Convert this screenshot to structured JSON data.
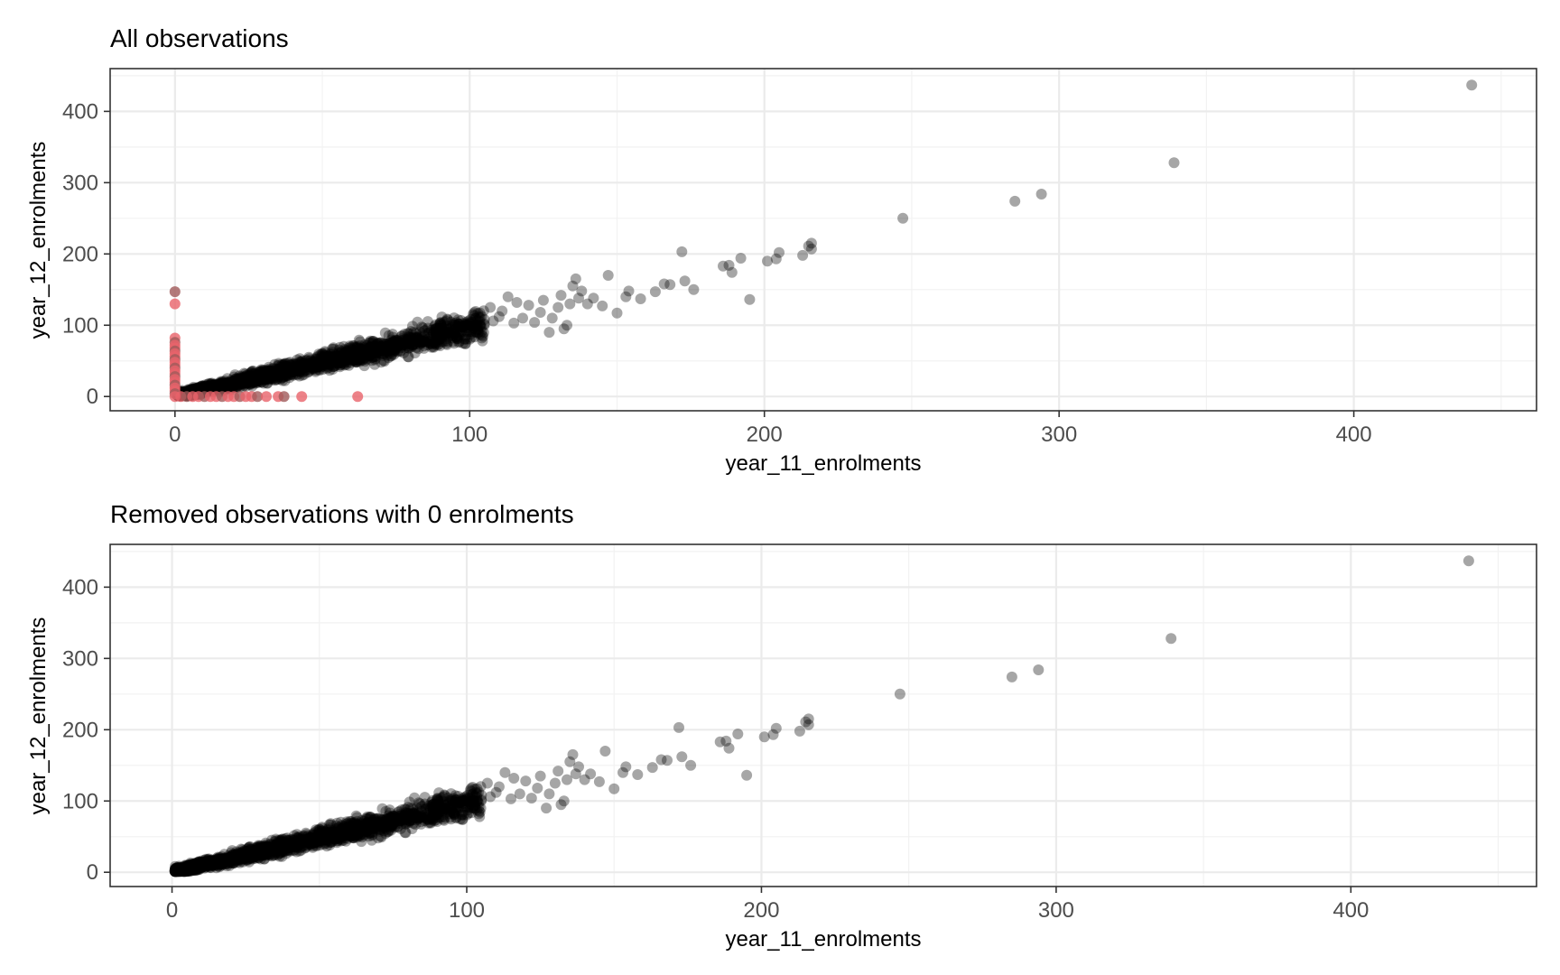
{
  "chart_data": [
    {
      "type": "scatter",
      "title": "All observations",
      "xlabel": "year_11_enrolments",
      "ylabel": "year_12_enrolments",
      "xlim": [
        -22,
        462
      ],
      "ylim": [
        -20,
        460
      ],
      "x_ticks": [
        0,
        100,
        200,
        300,
        400
      ],
      "y_ticks": [
        0,
        100,
        200,
        300,
        400
      ],
      "x_tick_labels": [
        "0",
        "100",
        "200",
        "300",
        "400"
      ],
      "y_tick_labels": [
        "0",
        "100",
        "200",
        "300",
        "400"
      ],
      "grid": true,
      "legend": "none",
      "colors": {
        "main": "#000000",
        "zero": "#e8636a",
        "zero_alt": "#a05a5a"
      },
      "series": [
        {
          "color": "#000000",
          "opacity": 0.35,
          "trend": {
            "slope": 0.97,
            "intercept": 0,
            "x_range": [
              1,
              105
            ],
            "noise": 8,
            "count": 1800
          },
          "points": [
            [
              440,
              437
            ],
            [
              339,
              328
            ],
            [
              294,
              284
            ],
            [
              285,
              274
            ],
            [
              247,
              250
            ],
            [
              216,
              215
            ],
            [
              216,
              207
            ],
            [
              215,
              211
            ],
            [
              213,
              198
            ],
            [
              205,
              202
            ],
            [
              204,
              193
            ],
            [
              201,
              190
            ],
            [
              195,
              136
            ],
            [
              192,
              194
            ],
            [
              189,
              174
            ],
            [
              188,
              184
            ],
            [
              186,
              183
            ],
            [
              176,
              150
            ],
            [
              173,
              162
            ],
            [
              172,
              203
            ],
            [
              168,
              157
            ],
            [
              166,
              158
            ],
            [
              163,
              147
            ],
            [
              158,
              137
            ],
            [
              154,
              148
            ],
            [
              153,
              140
            ],
            [
              150,
              117
            ],
            [
              147,
              170
            ],
            [
              145,
              127
            ],
            [
              142,
              138
            ],
            [
              140,
              130
            ],
            [
              138,
              148
            ],
            [
              137,
              138
            ],
            [
              136,
              165
            ],
            [
              135,
              155
            ],
            [
              134,
              130
            ],
            [
              133,
              100
            ],
            [
              132,
              95
            ],
            [
              131,
              142
            ],
            [
              130,
              125
            ],
            [
              128,
              110
            ],
            [
              127,
              90
            ],
            [
              125,
              135
            ],
            [
              124,
              118
            ],
            [
              122,
              104
            ],
            [
              120,
              128
            ],
            [
              118,
              110
            ],
            [
              116,
              132
            ],
            [
              115,
              103
            ],
            [
              113,
              140
            ],
            [
              111,
              120
            ],
            [
              110,
              112
            ],
            [
              108,
              106
            ],
            [
              107,
              125
            ],
            [
              105,
              108
            ]
          ]
        },
        {
          "color": "#e8636a",
          "opacity": 0.8,
          "points": [
            [
              0,
              147
            ],
            [
              0,
              130
            ],
            [
              0,
              82
            ],
            [
              0,
              76
            ],
            [
              0,
              72
            ],
            [
              0,
              68
            ],
            [
              0,
              64
            ],
            [
              0,
              60
            ],
            [
              0,
              56
            ],
            [
              0,
              52
            ],
            [
              0,
              48
            ],
            [
              0,
              44
            ],
            [
              0,
              40
            ],
            [
              0,
              36
            ],
            [
              0,
              32
            ],
            [
              0,
              28
            ],
            [
              0,
              24
            ],
            [
              0,
              20
            ],
            [
              0,
              16
            ],
            [
              0,
              12
            ],
            [
              0,
              8
            ],
            [
              0,
              4
            ],
            [
              0,
              0
            ],
            [
              2,
              0
            ],
            [
              4,
              0
            ],
            [
              6,
              0
            ],
            [
              8,
              0
            ],
            [
              10,
              0
            ],
            [
              12,
              0
            ],
            [
              14,
              0
            ],
            [
              16,
              0
            ],
            [
              18,
              0
            ],
            [
              20,
              0
            ],
            [
              22,
              0
            ],
            [
              24,
              0
            ],
            [
              26,
              0
            ],
            [
              28,
              0
            ],
            [
              31,
              0
            ],
            [
              35,
              0
            ],
            [
              37,
              0
            ],
            [
              43,
              0
            ],
            [
              62,
              0
            ]
          ]
        }
      ]
    },
    {
      "type": "scatter",
      "title": "Removed observations with 0 enrolments",
      "xlabel": "year_11_enrolments",
      "ylabel": "year_12_enrolments",
      "xlim": [
        -21,
        463
      ],
      "ylim": [
        -20,
        460
      ],
      "x_ticks": [
        0,
        100,
        200,
        300,
        400
      ],
      "y_ticks": [
        0,
        100,
        200,
        300,
        400
      ],
      "x_tick_labels": [
        "0",
        "100",
        "200",
        "300",
        "400"
      ],
      "y_tick_labels": [
        "0",
        "100",
        "200",
        "300",
        "400"
      ],
      "grid": true,
      "legend": "none",
      "series": [
        {
          "color": "#000000",
          "opacity": 0.35,
          "trend": {
            "slope": 0.97,
            "intercept": 0,
            "x_range": [
              1,
              105
            ],
            "noise": 8,
            "count": 1800
          },
          "points": [
            [
              440,
              437
            ],
            [
              339,
              328
            ],
            [
              294,
              284
            ],
            [
              285,
              274
            ],
            [
              247,
              250
            ],
            [
              216,
              215
            ],
            [
              216,
              207
            ],
            [
              215,
              211
            ],
            [
              213,
              198
            ],
            [
              205,
              202
            ],
            [
              204,
              193
            ],
            [
              201,
              190
            ],
            [
              195,
              136
            ],
            [
              192,
              194
            ],
            [
              189,
              174
            ],
            [
              188,
              184
            ],
            [
              186,
              183
            ],
            [
              176,
              150
            ],
            [
              173,
              162
            ],
            [
              172,
              203
            ],
            [
              168,
              157
            ],
            [
              166,
              158
            ],
            [
              163,
              147
            ],
            [
              158,
              137
            ],
            [
              154,
              148
            ],
            [
              153,
              140
            ],
            [
              150,
              117
            ],
            [
              147,
              170
            ],
            [
              145,
              127
            ],
            [
              142,
              138
            ],
            [
              140,
              130
            ],
            [
              138,
              148
            ],
            [
              137,
              138
            ],
            [
              136,
              165
            ],
            [
              135,
              155
            ],
            [
              134,
              130
            ],
            [
              133,
              100
            ],
            [
              132,
              95
            ],
            [
              131,
              142
            ],
            [
              130,
              125
            ],
            [
              128,
              110
            ],
            [
              127,
              90
            ],
            [
              125,
              135
            ],
            [
              124,
              118
            ],
            [
              122,
              104
            ],
            [
              120,
              128
            ],
            [
              118,
              110
            ],
            [
              116,
              132
            ],
            [
              115,
              103
            ],
            [
              113,
              140
            ],
            [
              111,
              120
            ],
            [
              110,
              112
            ],
            [
              108,
              106
            ],
            [
              107,
              125
            ],
            [
              105,
              108
            ]
          ]
        }
      ]
    }
  ]
}
